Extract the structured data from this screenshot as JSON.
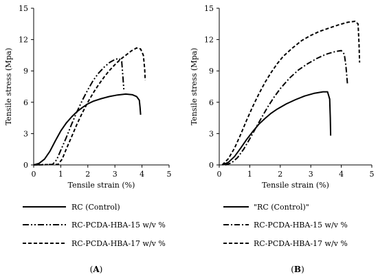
{
  "chart_data": [
    {
      "type": "line",
      "panel": "A",
      "panel_caption": {
        "open": "(",
        "letter": "A",
        "close": ")"
      },
      "xlabel": "Tensile strain (%)",
      "ylabel": "Tensile stress (Mpa)",
      "xlim": [
        0,
        5
      ],
      "ylim": [
        0,
        15
      ],
      "xticks": [
        "0",
        "1",
        "2",
        "3",
        "4",
        "5"
      ],
      "yticks": [
        "0",
        "3",
        "6",
        "9",
        "12",
        "15"
      ],
      "grid": false,
      "legend_position": "bottom",
      "series": [
        {
          "name": "RC (Control)",
          "line_style": "solid",
          "points": [
            [
              0,
              0
            ],
            [
              0.2,
              0.15
            ],
            [
              0.4,
              0.55
            ],
            [
              0.6,
              1.3
            ],
            [
              0.8,
              2.3
            ],
            [
              1.0,
              3.25
            ],
            [
              1.2,
              4.0
            ],
            [
              1.4,
              4.6
            ],
            [
              1.6,
              5.1
            ],
            [
              1.8,
              5.5
            ],
            [
              2.0,
              5.85
            ],
            [
              2.2,
              6.1
            ],
            [
              2.5,
              6.35
            ],
            [
              2.8,
              6.55
            ],
            [
              3.1,
              6.7
            ],
            [
              3.4,
              6.78
            ],
            [
              3.65,
              6.72
            ],
            [
              3.8,
              6.55
            ],
            [
              3.9,
              6.2
            ],
            [
              3.93,
              5.5
            ],
            [
              3.95,
              4.8
            ]
          ]
        },
        {
          "name": "RC-PCDA-HBA-15 w/v %",
          "line_style": "dash-dot-dot",
          "points": [
            [
              0,
              0
            ],
            [
              0.7,
              0.05
            ],
            [
              0.85,
              0.5
            ],
            [
              1.0,
              1.4
            ],
            [
              1.2,
              2.6
            ],
            [
              1.4,
              3.9
            ],
            [
              1.6,
              5.1
            ],
            [
              1.8,
              6.2
            ],
            [
              2.0,
              7.2
            ],
            [
              2.2,
              8.1
            ],
            [
              2.4,
              8.8
            ],
            [
              2.6,
              9.35
            ],
            [
              2.8,
              9.8
            ],
            [
              3.0,
              10.1
            ],
            [
              3.15,
              10.2
            ],
            [
              3.25,
              9.9
            ],
            [
              3.3,
              8.3
            ],
            [
              3.33,
              7.2
            ]
          ]
        },
        {
          "name": "RC-PCDA-HBA-17 w/v %",
          "line_style": "dashed",
          "points": [
            [
              0,
              0
            ],
            [
              0.9,
              0.05
            ],
            [
              1.05,
              0.55
            ],
            [
              1.2,
              1.5
            ],
            [
              1.4,
              2.7
            ],
            [
              1.6,
              3.9
            ],
            [
              1.8,
              5.0
            ],
            [
              2.0,
              6.0
            ],
            [
              2.2,
              6.9
            ],
            [
              2.4,
              7.7
            ],
            [
              2.6,
              8.4
            ],
            [
              2.8,
              9.05
            ],
            [
              3.0,
              9.6
            ],
            [
              3.2,
              10.1
            ],
            [
              3.4,
              10.5
            ],
            [
              3.6,
              10.9
            ],
            [
              3.8,
              11.2
            ],
            [
              3.95,
              11.1
            ],
            [
              4.05,
              10.5
            ],
            [
              4.1,
              9.2
            ],
            [
              4.12,
              8.1
            ]
          ]
        }
      ]
    },
    {
      "type": "line",
      "panel": "B",
      "panel_caption": {
        "open": "(",
        "letter": "B",
        "close": ")"
      },
      "xlabel": "Tensile strain (%)",
      "ylabel": "Tensile stress (Mpa)",
      "xlim": [
        0,
        5
      ],
      "ylim": [
        0,
        15
      ],
      "xticks": [
        "0",
        "1",
        "2",
        "3",
        "4",
        "5"
      ],
      "yticks": [
        "0",
        "3",
        "6",
        "9",
        "12",
        "15"
      ],
      "grid": false,
      "legend_position": "bottom",
      "series": [
        {
          "name": "\"RC (Control)\"",
          "line_style": "solid",
          "points": [
            [
              0.1,
              0
            ],
            [
              0.3,
              0.25
            ],
            [
              0.5,
              0.8
            ],
            [
              0.7,
              1.6
            ],
            [
              0.9,
              2.45
            ],
            [
              1.1,
              3.2
            ],
            [
              1.3,
              3.9
            ],
            [
              1.5,
              4.45
            ],
            [
              1.7,
              4.95
            ],
            [
              1.9,
              5.35
            ],
            [
              2.2,
              5.85
            ],
            [
              2.5,
              6.25
            ],
            [
              2.8,
              6.6
            ],
            [
              3.1,
              6.85
            ],
            [
              3.4,
              7.0
            ],
            [
              3.55,
              7.0
            ],
            [
              3.62,
              6.3
            ],
            [
              3.64,
              4.5
            ],
            [
              3.65,
              2.8
            ]
          ]
        },
        {
          "name": "RC-PCDA-HBA-15 w/v %",
          "line_style": "dash-dot",
          "points": [
            [
              0.2,
              0
            ],
            [
              0.4,
              0.2
            ],
            [
              0.6,
              0.7
            ],
            [
              0.8,
              1.5
            ],
            [
              1.0,
              2.5
            ],
            [
              1.2,
              3.55
            ],
            [
              1.4,
              4.6
            ],
            [
              1.6,
              5.6
            ],
            [
              1.8,
              6.5
            ],
            [
              2.0,
              7.3
            ],
            [
              2.3,
              8.3
            ],
            [
              2.6,
              9.1
            ],
            [
              2.9,
              9.7
            ],
            [
              3.2,
              10.2
            ],
            [
              3.5,
              10.6
            ],
            [
              3.8,
              10.85
            ],
            [
              4.0,
              10.95
            ],
            [
              4.1,
              10.6
            ],
            [
              4.15,
              9.5
            ],
            [
              4.2,
              7.8
            ]
          ]
        },
        {
          "name": "RC-PCDA-HBA-17 w/v %",
          "line_style": "dashed",
          "points": [
            [
              0.1,
              0
            ],
            [
              0.3,
              0.6
            ],
            [
              0.5,
              1.6
            ],
            [
              0.7,
              2.9
            ],
            [
              0.9,
              4.3
            ],
            [
              1.1,
              5.6
            ],
            [
              1.3,
              6.8
            ],
            [
              1.5,
              7.9
            ],
            [
              1.7,
              8.85
            ],
            [
              1.9,
              9.7
            ],
            [
              2.1,
              10.4
            ],
            [
              2.4,
              11.2
            ],
            [
              2.7,
              11.9
            ],
            [
              3.0,
              12.4
            ],
            [
              3.3,
              12.8
            ],
            [
              3.6,
              13.1
            ],
            [
              3.9,
              13.4
            ],
            [
              4.2,
              13.65
            ],
            [
              4.45,
              13.75
            ],
            [
              4.55,
              13.5
            ],
            [
              4.58,
              11.6
            ],
            [
              4.6,
              9.8
            ]
          ]
        }
      ]
    }
  ]
}
